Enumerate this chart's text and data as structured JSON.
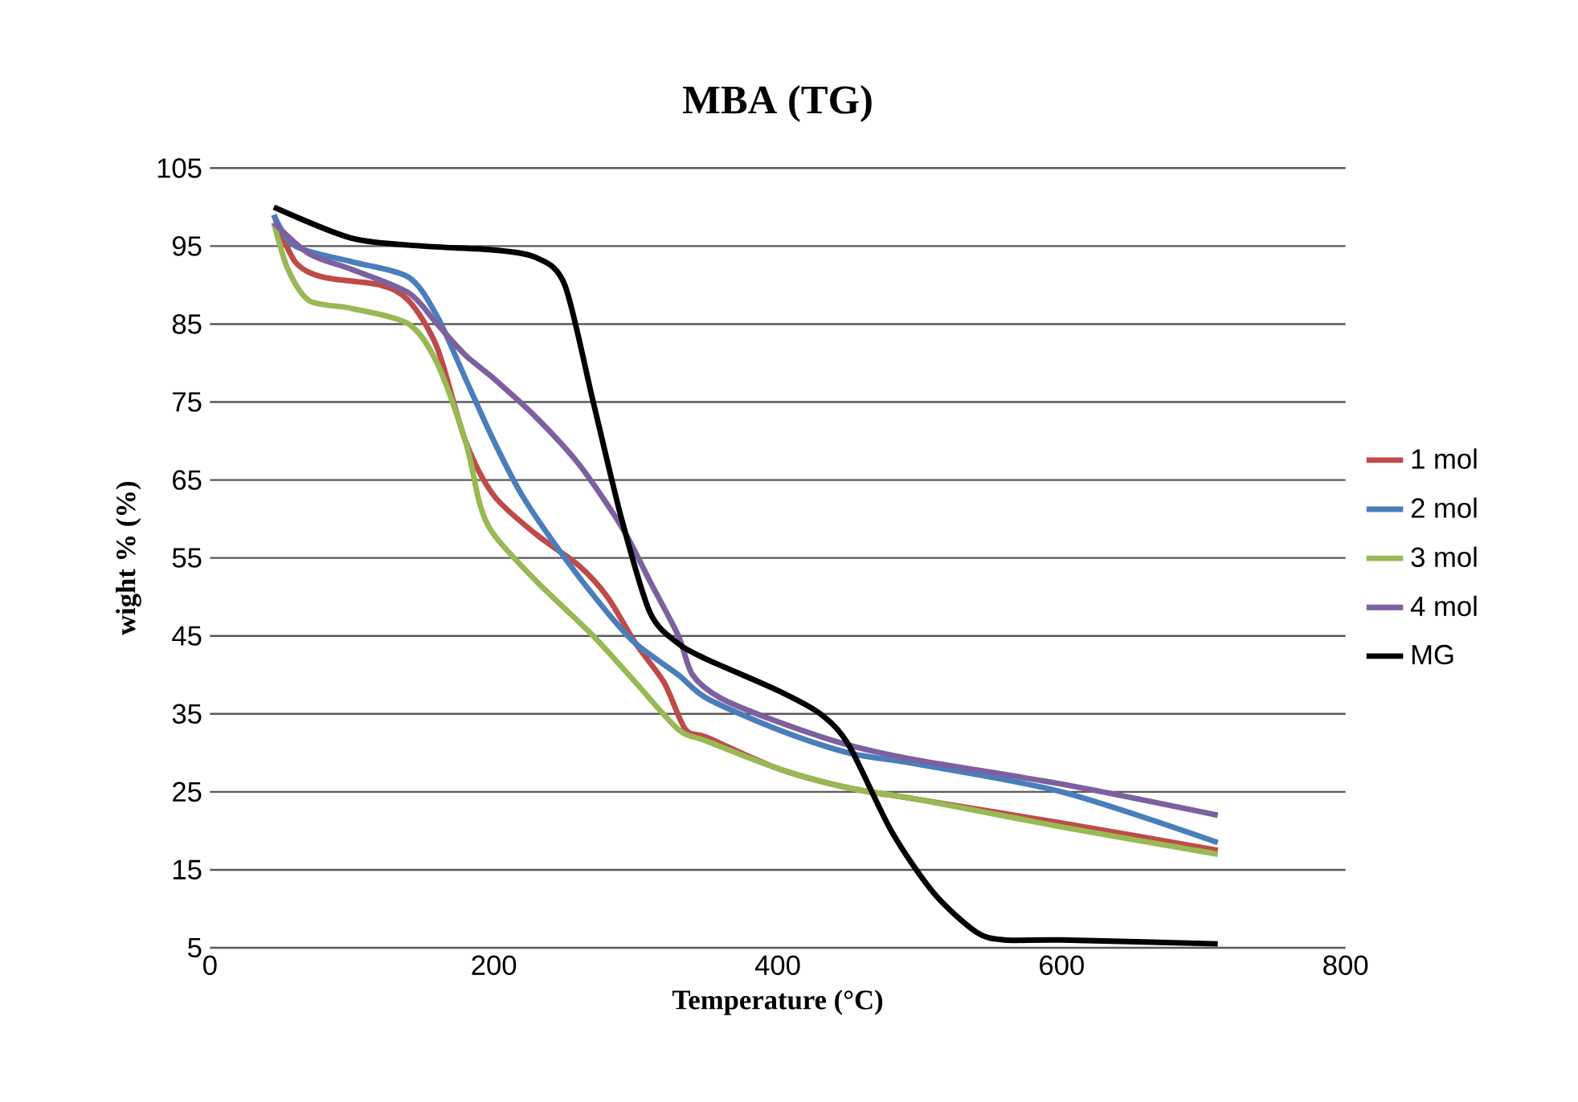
{
  "chart_data": {
    "type": "line",
    "title": "MBA (TG)",
    "xlabel": "Temperature (°C)",
    "ylabel": "wight % (%)",
    "xlim": [
      0,
      800
    ],
    "xticks": [
      0,
      200,
      400,
      600,
      800
    ],
    "ylim": [
      5,
      105
    ],
    "yticks": [
      5,
      15,
      25,
      35,
      45,
      55,
      65,
      75,
      85,
      95,
      105
    ],
    "grid": "y",
    "legend": "right",
    "marker": "none",
    "line_style": "solid",
    "series": [
      {
        "name": "1 mol",
        "color": "#be4b48",
        "x": [
          45,
          60,
          80,
          120,
          140,
          160,
          180,
          200,
          230,
          260,
          280,
          300,
          320,
          335,
          350,
          400,
          450,
          500,
          600,
          710
        ],
        "values": [
          99,
          93,
          91,
          90,
          88,
          82,
          70,
          63,
          58,
          54,
          50,
          44,
          39,
          33,
          32,
          28,
          25.5,
          24,
          21,
          17.5
        ]
      },
      {
        "name": "2 mol",
        "color": "#4a7ebb",
        "x": [
          45,
          60,
          100,
          140,
          160,
          180,
          200,
          220,
          250,
          280,
          300,
          330,
          350,
          400,
          450,
          500,
          600,
          710
        ],
        "values": [
          99,
          95,
          93,
          91,
          86,
          78,
          70,
          63,
          55,
          48,
          44,
          40,
          37,
          33,
          30,
          28.5,
          25,
          18.5
        ]
      },
      {
        "name": "3 mol",
        "color": "#98b954",
        "x": [
          45,
          55,
          70,
          100,
          140,
          160,
          180,
          190,
          200,
          230,
          270,
          300,
          330,
          350,
          400,
          450,
          500,
          600,
          710
        ],
        "values": [
          98,
          92,
          88,
          87,
          85,
          80,
          70,
          62,
          58,
          52,
          45,
          39,
          33,
          31.5,
          28,
          25.5,
          24,
          20.5,
          17
        ]
      },
      {
        "name": "4 mol",
        "color": "#7d60a0",
        "x": [
          45,
          70,
          100,
          140,
          160,
          180,
          200,
          230,
          260,
          290,
          310,
          330,
          340,
          360,
          400,
          450,
          500,
          600,
          710
        ],
        "values": [
          98,
          94,
          92,
          89,
          85,
          81,
          78,
          73,
          67,
          59,
          52,
          45,
          40,
          37,
          34,
          31,
          29,
          26,
          22
        ]
      },
      {
        "name": "MG",
        "color": "#000000",
        "x": [
          45,
          100,
          150,
          200,
          230,
          250,
          270,
          290,
          310,
          330,
          350,
          400,
          430,
          450,
          480,
          510,
          540,
          560,
          600,
          710
        ],
        "values": [
          100,
          96,
          95,
          94.5,
          93.5,
          90,
          75,
          60,
          48,
          44,
          42,
          38,
          35,
          31,
          20,
          12,
          7,
          6,
          6,
          5.5
        ]
      }
    ]
  }
}
